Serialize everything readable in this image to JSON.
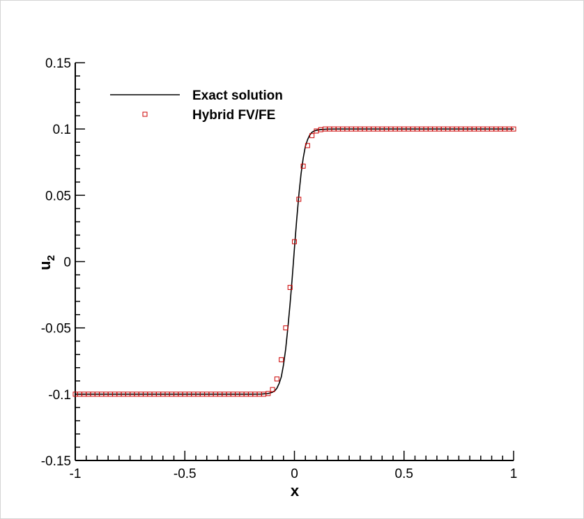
{
  "chart_data": {
    "type": "line",
    "title": "",
    "xlabel": "x",
    "ylabel": "u",
    "ylabel_subscript": "2",
    "xlim": [
      -1,
      1
    ],
    "ylim": [
      -0.15,
      0.15
    ],
    "x_ticks": [
      -1,
      -0.5,
      0,
      0.5,
      1
    ],
    "x_tick_labels": [
      "-1",
      "-0.5",
      "0",
      "0.5",
      "1"
    ],
    "y_ticks": [
      -0.15,
      -0.1,
      -0.05,
      0,
      0.05,
      0.1,
      0.15
    ],
    "y_tick_labels": [
      "-0.15",
      "-0.1",
      "-0.05",
      "0",
      "0.05",
      "0.1",
      "0.15"
    ],
    "grid": false,
    "legend": "top-left",
    "series": [
      {
        "name": "Exact solution",
        "style": "line",
        "color": "#000000",
        "x": [
          -1,
          -0.2,
          -0.15,
          -0.12,
          -0.1,
          -0.09,
          -0.08,
          -0.07,
          -0.06,
          -0.05,
          -0.04,
          -0.03,
          -0.02,
          -0.01,
          0,
          0.01,
          0.02,
          0.03,
          0.04,
          0.05,
          0.06,
          0.07,
          0.08,
          0.09,
          0.1,
          0.12,
          0.15,
          0.2,
          1
        ],
        "y": [
          -0.1,
          -0.1,
          -0.0999,
          -0.0995,
          -0.0985,
          -0.0975,
          -0.0955,
          -0.092,
          -0.087,
          -0.078,
          -0.066,
          -0.05,
          -0.032,
          -0.012,
          0.01,
          0.031,
          0.05,
          0.066,
          0.078,
          0.087,
          0.092,
          0.0955,
          0.0975,
          0.0985,
          0.099,
          0.0996,
          0.0999,
          0.1,
          0.1
        ]
      },
      {
        "name": "Hybrid FV/FE",
        "style": "markers",
        "marker": "square",
        "color": "#cc0000",
        "x": [
          -1,
          -0.98,
          -0.96,
          -0.94,
          -0.92,
          -0.9,
          -0.88,
          -0.86,
          -0.84,
          -0.82,
          -0.8,
          -0.78,
          -0.76,
          -0.74,
          -0.72,
          -0.7,
          -0.68,
          -0.66,
          -0.64,
          -0.62,
          -0.6,
          -0.58,
          -0.56,
          -0.54,
          -0.52,
          -0.5,
          -0.48,
          -0.46,
          -0.44,
          -0.42,
          -0.4,
          -0.38,
          -0.36,
          -0.34,
          -0.32,
          -0.3,
          -0.28,
          -0.26,
          -0.24,
          -0.22,
          -0.2,
          -0.18,
          -0.16,
          -0.14,
          -0.12,
          -0.1,
          -0.08,
          -0.06,
          -0.04,
          -0.02,
          0,
          0.02,
          0.04,
          0.06,
          0.08,
          0.1,
          0.12,
          0.14,
          0.16,
          0.18,
          0.2,
          0.22,
          0.24,
          0.26,
          0.28,
          0.3,
          0.32,
          0.34,
          0.36,
          0.38,
          0.4,
          0.42,
          0.44,
          0.46,
          0.48,
          0.5,
          0.52,
          0.54,
          0.56,
          0.58,
          0.6,
          0.62,
          0.64,
          0.66,
          0.68,
          0.7,
          0.72,
          0.74,
          0.76,
          0.78,
          0.8,
          0.82,
          0.84,
          0.86,
          0.88,
          0.9,
          0.92,
          0.94,
          0.96,
          0.98,
          1
        ],
        "y": [
          -0.1,
          -0.1,
          -0.1,
          -0.1,
          -0.1,
          -0.1,
          -0.1,
          -0.1,
          -0.1,
          -0.1,
          -0.1,
          -0.1,
          -0.1,
          -0.1,
          -0.1,
          -0.1,
          -0.1,
          -0.1,
          -0.1,
          -0.1,
          -0.1,
          -0.1,
          -0.1,
          -0.1,
          -0.1,
          -0.1,
          -0.1,
          -0.1,
          -0.1,
          -0.1,
          -0.1,
          -0.1,
          -0.1,
          -0.1,
          -0.1,
          -0.1,
          -0.1,
          -0.1,
          -0.1,
          -0.1,
          -0.1,
          -0.1,
          -0.1,
          -0.1,
          -0.0995,
          -0.0965,
          -0.0885,
          -0.074,
          -0.05,
          -0.0195,
          0.015,
          0.047,
          0.072,
          0.0875,
          0.095,
          0.0985,
          0.0995,
          0.1,
          0.1,
          0.1,
          0.1,
          0.1,
          0.1,
          0.1,
          0.1,
          0.1,
          0.1,
          0.1,
          0.1,
          0.1,
          0.1,
          0.1,
          0.1,
          0.1,
          0.1,
          0.1,
          0.1,
          0.1,
          0.1,
          0.1,
          0.1,
          0.1,
          0.1,
          0.1,
          0.1,
          0.1,
          0.1,
          0.1,
          0.1,
          0.1,
          0.1,
          0.1,
          0.1,
          0.1,
          0.1,
          0.1,
          0.1,
          0.1,
          0.1,
          0.1,
          0.1
        ]
      }
    ]
  }
}
